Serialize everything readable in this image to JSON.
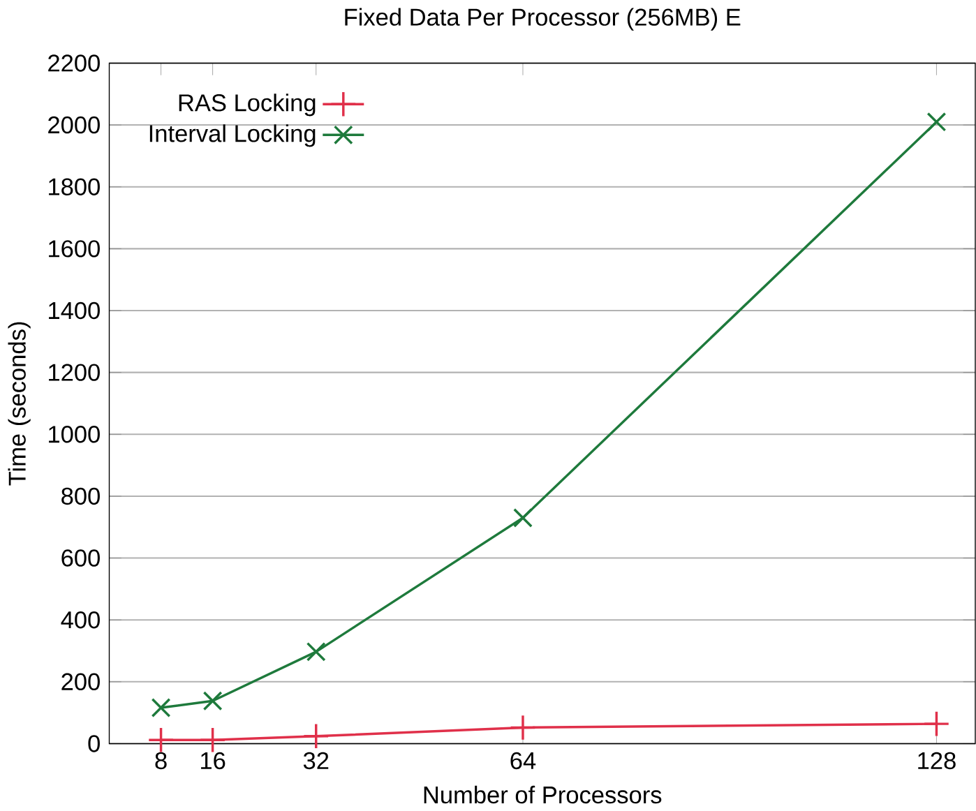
{
  "chart_data": {
    "type": "line",
    "title": "Fixed Data Per Processor (256MB) E",
    "xlabel": "Number of Processors",
    "ylabel": "Time (seconds)",
    "x": [
      8,
      16,
      32,
      64,
      128
    ],
    "series": [
      {
        "name": "RAS Locking",
        "color": "#e0304a",
        "marker": "cross",
        "values": [
          12,
          12,
          24,
          52,
          64
        ]
      },
      {
        "name": "Interval Locking",
        "color": "#1e7a3c",
        "marker": "x",
        "values": [
          116,
          138,
          297,
          730,
          2010
        ]
      }
    ],
    "xlim": [
      0,
      134
    ],
    "xticks": [
      8,
      16,
      32,
      64,
      128
    ],
    "ylim": [
      0,
      2200
    ],
    "yticks": [
      0,
      200,
      400,
      600,
      800,
      1000,
      1200,
      1400,
      1600,
      1800,
      2000,
      2200
    ],
    "grid": "y",
    "legend": "top left"
  }
}
